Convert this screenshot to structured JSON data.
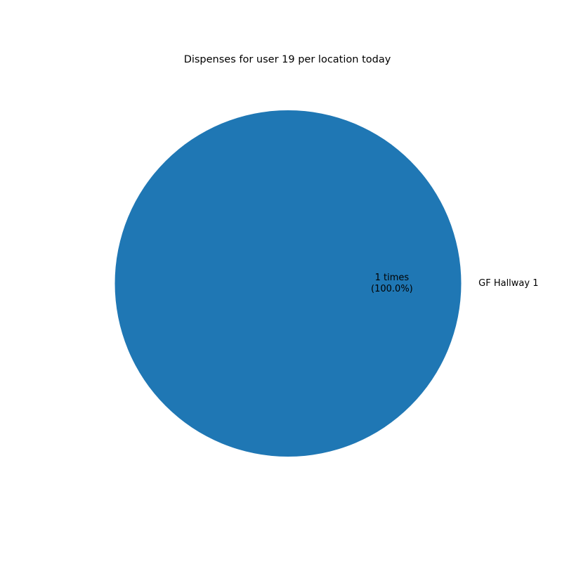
{
  "chart_data": {
    "type": "pie",
    "title": "Dispenses for user 19 per location today",
    "slices": [
      {
        "label": "GF Hallway 1",
        "value": 1,
        "value_text": "1 times",
        "percent_text": "(100.0%)",
        "color": "#1f77b4"
      }
    ],
    "start_angle_deg": 180,
    "legend": "none"
  }
}
